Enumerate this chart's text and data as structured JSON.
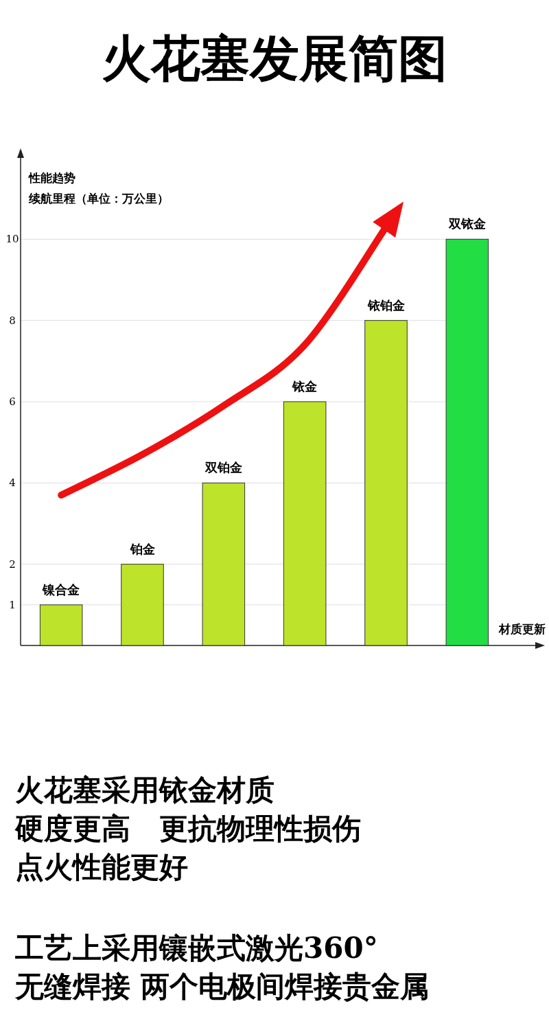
{
  "chart_data": {
    "type": "bar",
    "title": "火花塞发展简图",
    "ylabel": "续航里程（单位：万公里）",
    "xlabel": "材质更新",
    "categories": [
      "镍合金",
      "铂金",
      "双铂金",
      "铱金",
      "铱铂金",
      "双铱金"
    ],
    "series": [
      {
        "values": [
          1,
          2,
          4,
          6,
          8,
          10
        ],
        "colors": [
          "#bde32a",
          "#bde32a",
          "#bde32a",
          "#bde32a",
          "#bde32a",
          "#22dd44"
        ]
      },
      {
        "type": "line",
        "color": "#ee1111",
        "values": [
          3.7,
          4.7,
          5.9,
          7.4,
          10.3,
          null
        ]
      }
    ],
    "ylim": [
      0,
      12
    ],
    "yticks": [
      1,
      2,
      4,
      6,
      8,
      10
    ],
    "grid": "y",
    "annotations": [
      "性能趋势",
      "火花塞采用铱金材质",
      "硬度更高　更抗物理性损伤",
      "点火性能更好",
      "工艺上采用镶嵌式激光360°",
      "无缝焊接 两个电极间焊接贵金属"
    ]
  }
}
